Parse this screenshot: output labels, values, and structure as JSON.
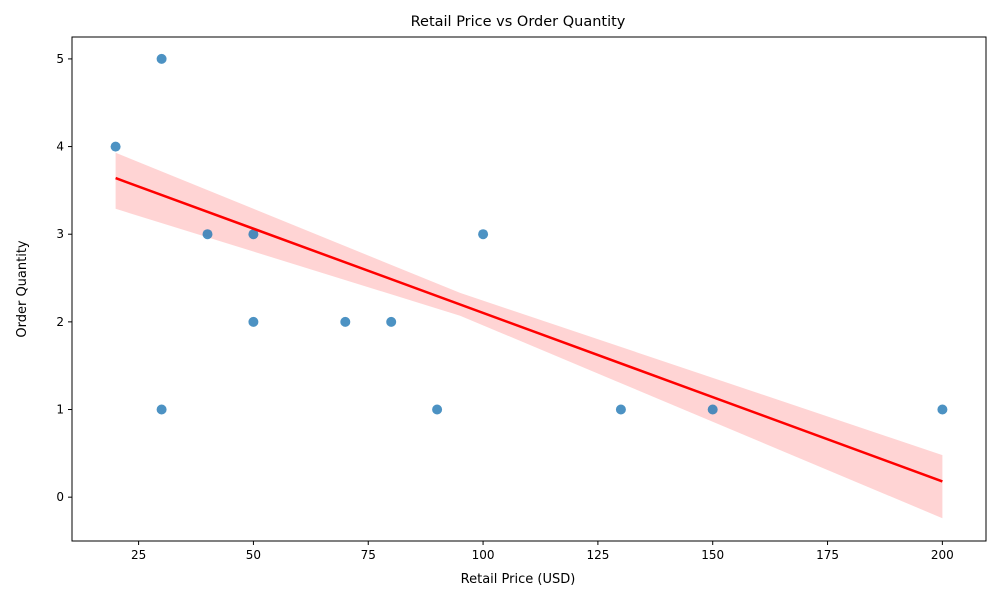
{
  "chart_data": {
    "type": "scatter",
    "title": "Retail Price vs Order Quantity",
    "xlabel": "Retail Price (USD)",
    "ylabel": "Order Quantity",
    "xlim": [
      10.5,
      209.5
    ],
    "ylim": [
      -0.5,
      5.25
    ],
    "xticks": [
      25,
      50,
      75,
      100,
      125,
      150,
      175,
      200
    ],
    "yticks": [
      0,
      1,
      2,
      3,
      4,
      5
    ],
    "grid": false,
    "legend": "none",
    "points": [
      {
        "x": 30,
        "y": 5
      },
      {
        "x": 20,
        "y": 4
      },
      {
        "x": 40,
        "y": 3
      },
      {
        "x": 50,
        "y": 3
      },
      {
        "x": 100,
        "y": 3
      },
      {
        "x": 50,
        "y": 2
      },
      {
        "x": 70,
        "y": 2
      },
      {
        "x": 80,
        "y": 2
      },
      {
        "x": 30,
        "y": 1
      },
      {
        "x": 90,
        "y": 1
      },
      {
        "x": 130,
        "y": 1
      },
      {
        "x": 150,
        "y": 1
      },
      {
        "x": 200,
        "y": 1
      }
    ],
    "regression": {
      "x": [
        20,
        200
      ],
      "y": [
        3.64,
        0.18
      ],
      "ci_lower": [
        3.29,
        -0.24
      ],
      "ci_upper": [
        3.93,
        0.48
      ],
      "ci_mid_x": 95,
      "ci_mid_lower": 2.07,
      "ci_mid_upper": 2.33
    },
    "colors": {
      "points": "#1f77b4",
      "line": "#ff0000",
      "band": "#ffcccc"
    }
  }
}
